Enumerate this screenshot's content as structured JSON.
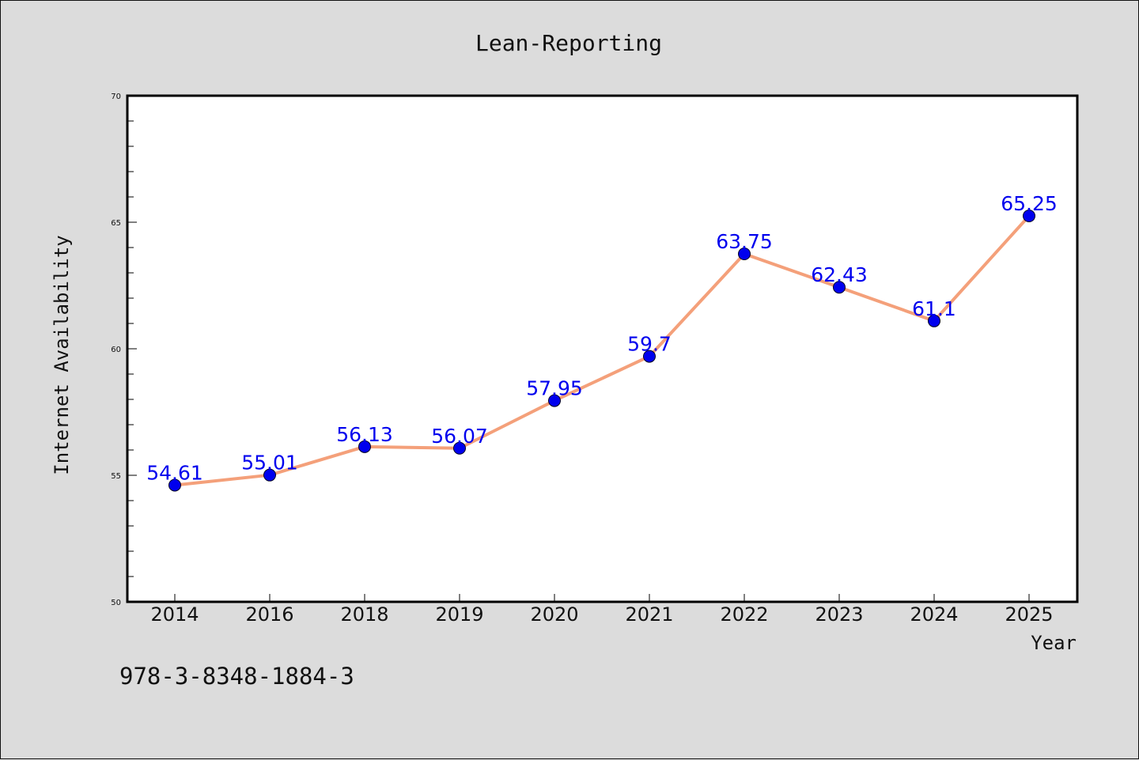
{
  "chart_data": {
    "type": "line",
    "title": "Lean-Reporting",
    "xlabel": "Year",
    "ylabel": "Internet Availability",
    "categories": [
      "2014",
      "2016",
      "2018",
      "2019",
      "2020",
      "2021",
      "2022",
      "2023",
      "2024",
      "2025"
    ],
    "series": [
      {
        "values": [
          54.61,
          55.01,
          56.13,
          56.07,
          57.95,
          59.7,
          63.75,
          62.43,
          61.1,
          65.25
        ]
      }
    ],
    "data_labels": [
      "54.61",
      "55.01",
      "56.13",
      "56.07",
      "57.95",
      "59.7",
      "63.75",
      "62.43",
      "61.1",
      "65.25"
    ],
    "ylim": [
      50,
      70
    ],
    "y_ticks": [
      "50",
      "55",
      "60",
      "65",
      "70"
    ],
    "y_minor_step": 1,
    "grid": false,
    "legend": "none",
    "colors": {
      "line": "#f4a07a",
      "marker": "#0000ee",
      "label": "#0000ee"
    }
  },
  "footer": {
    "text": "978-3-8348-1884-3"
  }
}
